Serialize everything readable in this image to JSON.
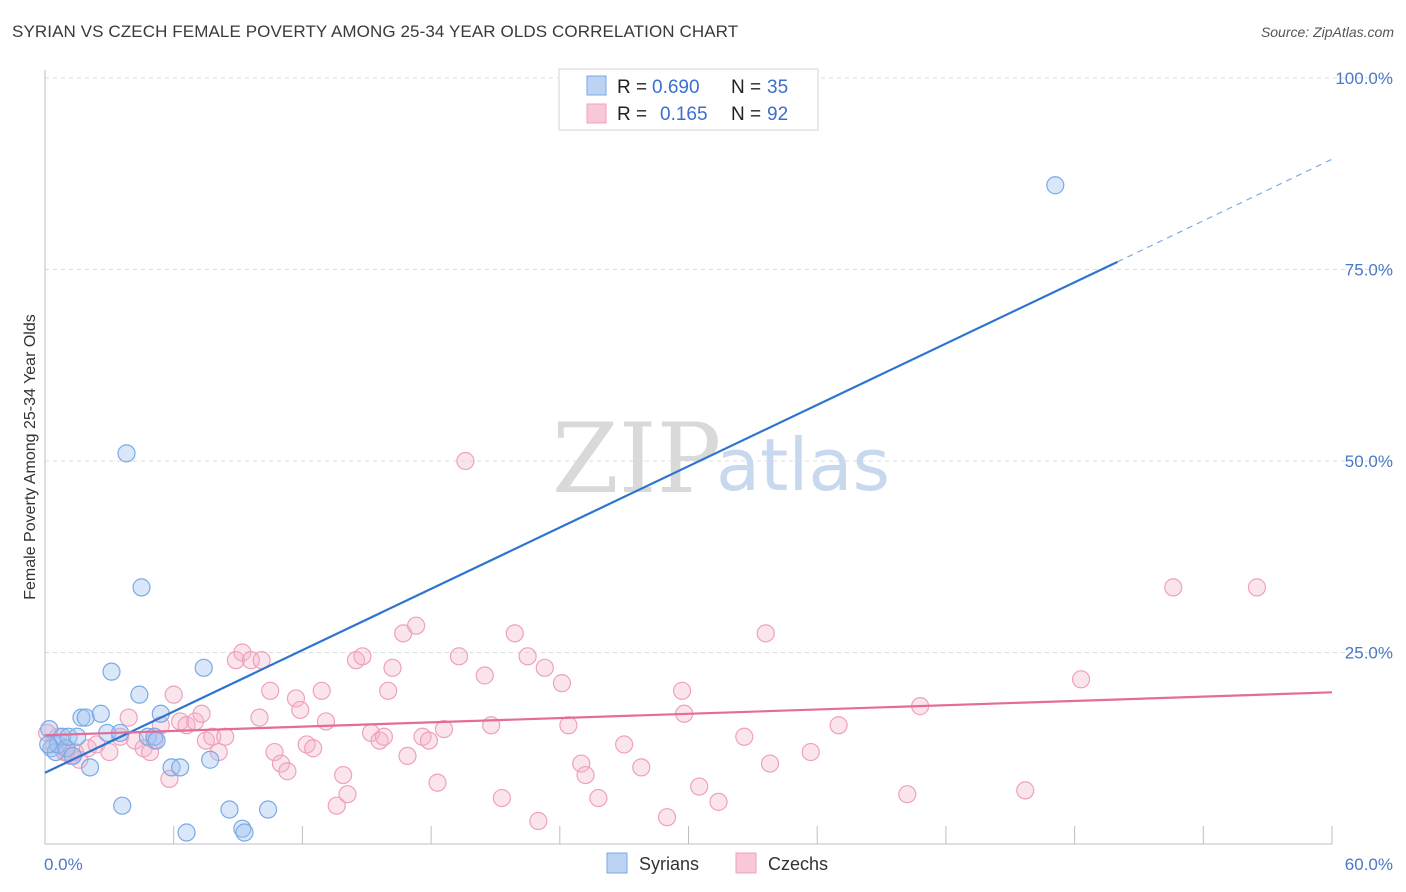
{
  "title": "SYRIAN VS CZECH FEMALE POVERTY AMONG 25-34 YEAR OLDS CORRELATION CHART",
  "source": "Source: ZipAtlas.com",
  "watermark": {
    "zip": "ZIP",
    "atlas": "atlas"
  },
  "colors": {
    "syrians": "#7aaae6",
    "czechs": "#f0a0bc",
    "syrians_line": "#2e74cf",
    "czechs_line": "#e56b9a",
    "tick": "#4a78c8"
  },
  "legend": {
    "r_label": "R =",
    "n_label": "N =",
    "syrians": {
      "r": "0.690",
      "n": "35"
    },
    "czechs": {
      "r": "0.165",
      "n": "92"
    }
  },
  "bottom_legend": {
    "syrians": "Syrians",
    "czechs": "Czechs"
  },
  "chart_data": {
    "type": "scatter",
    "title": "SYRIAN VS CZECH FEMALE POVERTY AMONG 25-34 YEAR OLDS CORRELATION CHART",
    "xlabel": "",
    "ylabel": "Female Poverty Among 25-34 Year Olds",
    "xlim": [
      0,
      60
    ],
    "ylim": [
      0,
      100
    ],
    "x_tick_labels": [
      "0.0%",
      "60.0%"
    ],
    "y_ticks": [
      {
        "value": 100,
        "label": "100.0%"
      },
      {
        "value": 75,
        "label": "75.0%"
      },
      {
        "value": 50,
        "label": "50.0%"
      },
      {
        "value": 25,
        "label": "25.0%"
      }
    ],
    "series": [
      {
        "name": "Syrians",
        "points": [
          [
            0.2,
            15
          ],
          [
            0.3,
            12.5
          ],
          [
            0.5,
            12
          ],
          [
            0.6,
            13
          ],
          [
            0.8,
            14
          ],
          [
            1.0,
            12.5
          ],
          [
            1.1,
            14
          ],
          [
            1.3,
            11.5
          ],
          [
            1.5,
            14
          ],
          [
            1.7,
            16.5
          ],
          [
            1.9,
            16.5
          ],
          [
            2.1,
            10
          ],
          [
            2.6,
            17
          ],
          [
            2.9,
            14.5
          ],
          [
            3.1,
            22.5
          ],
          [
            3.5,
            14.5
          ],
          [
            3.6,
            5
          ],
          [
            3.8,
            51
          ],
          [
            4.4,
            19.5
          ],
          [
            4.5,
            33.5
          ],
          [
            4.8,
            14
          ],
          [
            5.1,
            14
          ],
          [
            5.2,
            13.5
          ],
          [
            5.4,
            17
          ],
          [
            5.9,
            10
          ],
          [
            6.3,
            10
          ],
          [
            6.6,
            1.5
          ],
          [
            7.4,
            23
          ],
          [
            7.7,
            11
          ],
          [
            8.6,
            4.5
          ],
          [
            9.2,
            2
          ],
          [
            9.3,
            1.5
          ],
          [
            10.4,
            4.5
          ],
          [
            47.1,
            86
          ],
          [
            0.15,
            13
          ]
        ],
        "trend": {
          "x0": 0,
          "y0": 9.3,
          "x1": 50,
          "y1": 76,
          "dashed_to_x": 60,
          "dashed_to_y": 89.4
        }
      },
      {
        "name": "Czechs",
        "points": [
          [
            0.1,
            14.5
          ],
          [
            0.4,
            13
          ],
          [
            0.6,
            14
          ],
          [
            0.9,
            12
          ],
          [
            1.0,
            12
          ],
          [
            1.2,
            11.5
          ],
          [
            1.4,
            12
          ],
          [
            1.6,
            11
          ],
          [
            2.0,
            12.5
          ],
          [
            2.4,
            13
          ],
          [
            3.0,
            12
          ],
          [
            3.5,
            14
          ],
          [
            3.9,
            16.5
          ],
          [
            4.2,
            13.5
          ],
          [
            4.6,
            12.5
          ],
          [
            4.9,
            12
          ],
          [
            5.1,
            13.5
          ],
          [
            5.4,
            15.5
          ],
          [
            5.8,
            8.5
          ],
          [
            6.0,
            19.5
          ],
          [
            6.3,
            16
          ],
          [
            6.6,
            15.5
          ],
          [
            7.0,
            16
          ],
          [
            7.3,
            17
          ],
          [
            7.5,
            13.5
          ],
          [
            7.8,
            14
          ],
          [
            8.1,
            12
          ],
          [
            8.4,
            14
          ],
          [
            8.9,
            24
          ],
          [
            9.2,
            25
          ],
          [
            9.6,
            24
          ],
          [
            10.0,
            16.5
          ],
          [
            10.1,
            24
          ],
          [
            10.5,
            20
          ],
          [
            10.7,
            12
          ],
          [
            11.0,
            10.5
          ],
          [
            11.3,
            9.5
          ],
          [
            11.7,
            19
          ],
          [
            11.9,
            17.5
          ],
          [
            12.2,
            13
          ],
          [
            12.5,
            12.5
          ],
          [
            12.9,
            20
          ],
          [
            13.1,
            16
          ],
          [
            13.6,
            5
          ],
          [
            13.9,
            9
          ],
          [
            14.1,
            6.5
          ],
          [
            14.5,
            24
          ],
          [
            14.8,
            24.5
          ],
          [
            15.2,
            14.5
          ],
          [
            15.6,
            13.5
          ],
          [
            15.8,
            14
          ],
          [
            16.0,
            20
          ],
          [
            16.2,
            23
          ],
          [
            16.7,
            27.5
          ],
          [
            16.9,
            11.5
          ],
          [
            17.3,
            28.5
          ],
          [
            17.6,
            14
          ],
          [
            17.9,
            13.5
          ],
          [
            18.3,
            8
          ],
          [
            18.6,
            15
          ],
          [
            19.3,
            24.5
          ],
          [
            19.6,
            50
          ],
          [
            20.5,
            22
          ],
          [
            20.8,
            15.5
          ],
          [
            21.3,
            6
          ],
          [
            21.9,
            27.5
          ],
          [
            22.5,
            24.5
          ],
          [
            23.0,
            3
          ],
          [
            23.3,
            23
          ],
          [
            24.1,
            21
          ],
          [
            24.4,
            15.5
          ],
          [
            25.0,
            10.5
          ],
          [
            25.2,
            9
          ],
          [
            25.8,
            6
          ],
          [
            27.0,
            13
          ],
          [
            27.8,
            10
          ],
          [
            29.0,
            3.5
          ],
          [
            29.7,
            20
          ],
          [
            29.8,
            17
          ],
          [
            30.5,
            7.5
          ],
          [
            31.4,
            5.5
          ],
          [
            32.6,
            14
          ],
          [
            33.6,
            27.5
          ],
          [
            33.8,
            10.5
          ],
          [
            35.7,
            12
          ],
          [
            37.0,
            15.5
          ],
          [
            40.2,
            6.5
          ],
          [
            40.8,
            18
          ],
          [
            45.7,
            7
          ],
          [
            48.3,
            21.5
          ],
          [
            52.6,
            33.5
          ],
          [
            56.5,
            33.5
          ]
        ],
        "trend": {
          "x0": 0,
          "y0": 14.2,
          "x1": 60,
          "y1": 19.8
        }
      }
    ]
  }
}
